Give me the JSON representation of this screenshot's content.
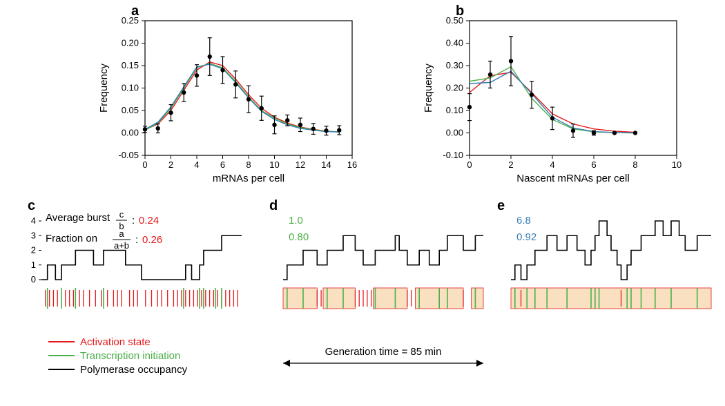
{
  "panel_a": {
    "label": "a",
    "type": "scatter+line",
    "xlabel": "mRNAs per cell",
    "ylabel": "Frequency",
    "xlim": [
      0,
      16
    ],
    "ylim": [
      -0.05,
      0.25
    ],
    "xtick_step": 2,
    "yticks": [
      -0.05,
      0.0,
      0.05,
      0.1,
      0.15,
      0.2,
      0.25
    ],
    "background_color": "#ffffff",
    "marker_color": "#000000",
    "marker_size": 3.2,
    "error_bar_color": "#000000",
    "line_width": 1.4,
    "line_colors": {
      "red": "#e41a1c",
      "green": "#4daf4a",
      "blue": "#377eb8"
    },
    "data_points": [
      {
        "x": 0,
        "y": 0.008,
        "err": 0.007
      },
      {
        "x": 1,
        "y": 0.01,
        "err": 0.01
      },
      {
        "x": 2,
        "y": 0.045,
        "err": 0.018
      },
      {
        "x": 3,
        "y": 0.09,
        "err": 0.02
      },
      {
        "x": 4,
        "y": 0.128,
        "err": 0.024
      },
      {
        "x": 5,
        "y": 0.17,
        "err": 0.042
      },
      {
        "x": 6,
        "y": 0.14,
        "err": 0.03
      },
      {
        "x": 7,
        "y": 0.108,
        "err": 0.03
      },
      {
        "x": 8,
        "y": 0.075,
        "err": 0.03
      },
      {
        "x": 9,
        "y": 0.055,
        "err": 0.027
      },
      {
        "x": 10,
        "y": 0.018,
        "err": 0.02
      },
      {
        "x": 11,
        "y": 0.028,
        "err": 0.012
      },
      {
        "x": 12,
        "y": 0.018,
        "err": 0.015
      },
      {
        "x": 13,
        "y": 0.009,
        "err": 0.012
      },
      {
        "x": 14,
        "y": 0.005,
        "err": 0.01
      },
      {
        "x": 15,
        "y": 0.006,
        "err": 0.01
      }
    ],
    "red_curve": [
      {
        "x": 0,
        "y": 0.007
      },
      {
        "x": 1,
        "y": 0.02
      },
      {
        "x": 2,
        "y": 0.05
      },
      {
        "x": 3,
        "y": 0.095
      },
      {
        "x": 4,
        "y": 0.14
      },
      {
        "x": 5,
        "y": 0.158
      },
      {
        "x": 6,
        "y": 0.15
      },
      {
        "x": 7,
        "y": 0.12
      },
      {
        "x": 8,
        "y": 0.085
      },
      {
        "x": 9,
        "y": 0.055
      },
      {
        "x": 10,
        "y": 0.035
      },
      {
        "x": 11,
        "y": 0.022
      },
      {
        "x": 12,
        "y": 0.013
      },
      {
        "x": 13,
        "y": 0.008
      },
      {
        "x": 14,
        "y": 0.004
      },
      {
        "x": 15,
        "y": 0.002
      }
    ],
    "green_curve": [
      {
        "x": 0,
        "y": 0.006
      },
      {
        "x": 1,
        "y": 0.022
      },
      {
        "x": 2,
        "y": 0.055
      },
      {
        "x": 3,
        "y": 0.1
      },
      {
        "x": 4,
        "y": 0.145
      },
      {
        "x": 5,
        "y": 0.155
      },
      {
        "x": 6,
        "y": 0.145
      },
      {
        "x": 7,
        "y": 0.115
      },
      {
        "x": 8,
        "y": 0.08
      },
      {
        "x": 9,
        "y": 0.05
      },
      {
        "x": 10,
        "y": 0.033
      },
      {
        "x": 11,
        "y": 0.02
      },
      {
        "x": 12,
        "y": 0.012
      },
      {
        "x": 13,
        "y": 0.007
      },
      {
        "x": 14,
        "y": 0.004
      },
      {
        "x": 15,
        "y": 0.002
      }
    ],
    "blue_curve": [
      {
        "x": 0,
        "y": 0.008
      },
      {
        "x": 1,
        "y": 0.024
      },
      {
        "x": 2,
        "y": 0.058
      },
      {
        "x": 3,
        "y": 0.103
      },
      {
        "x": 4,
        "y": 0.147
      },
      {
        "x": 5,
        "y": 0.153
      },
      {
        "x": 6,
        "y": 0.143
      },
      {
        "x": 7,
        "y": 0.112
      },
      {
        "x": 8,
        "y": 0.078
      },
      {
        "x": 9,
        "y": 0.048
      },
      {
        "x": 10,
        "y": 0.03
      },
      {
        "x": 11,
        "y": 0.018
      },
      {
        "x": 12,
        "y": 0.01
      },
      {
        "x": 13,
        "y": 0.006
      },
      {
        "x": 14,
        "y": 0.003
      },
      {
        "x": 15,
        "y": 0.002
      }
    ]
  },
  "panel_b": {
    "label": "b",
    "type": "scatter+line",
    "xlabel": "Nascent mRNAs per cell",
    "ylabel": "Frequency",
    "xlim": [
      0,
      10
    ],
    "ylim": [
      -0.1,
      0.5
    ],
    "xtick_step": 2,
    "yticks": [
      -0.1,
      0.0,
      0.1,
      0.2,
      0.3,
      0.4,
      0.5
    ],
    "background_color": "#ffffff",
    "marker_color": "#000000",
    "marker_size": 3.2,
    "error_bar_color": "#000000",
    "line_width": 1.4,
    "line_colors": {
      "red": "#e41a1c",
      "green": "#4daf4a",
      "blue": "#377eb8"
    },
    "data_points": [
      {
        "x": 0,
        "y": 0.115,
        "err": 0.06
      },
      {
        "x": 1,
        "y": 0.26,
        "err": 0.06
      },
      {
        "x": 2,
        "y": 0.32,
        "err": 0.11
      },
      {
        "x": 3,
        "y": 0.17,
        "err": 0.06
      },
      {
        "x": 4,
        "y": 0.065,
        "err": 0.05
      },
      {
        "x": 5,
        "y": 0.01,
        "err": 0.03
      },
      {
        "x": 6,
        "y": 0.0,
        "err": 0.01
      },
      {
        "x": 7,
        "y": 0.0,
        "err": 0.0
      },
      {
        "x": 8,
        "y": 0.0,
        "err": 0.0
      }
    ],
    "red_curve": [
      {
        "x": 0,
        "y": 0.18
      },
      {
        "x": 1,
        "y": 0.255
      },
      {
        "x": 2,
        "y": 0.27
      },
      {
        "x": 3,
        "y": 0.18
      },
      {
        "x": 4,
        "y": 0.085
      },
      {
        "x": 5,
        "y": 0.04
      },
      {
        "x": 6,
        "y": 0.018
      },
      {
        "x": 7,
        "y": 0.008
      },
      {
        "x": 8,
        "y": 0.003
      }
    ],
    "green_curve": [
      {
        "x": 0,
        "y": 0.23
      },
      {
        "x": 1,
        "y": 0.245
      },
      {
        "x": 2,
        "y": 0.295
      },
      {
        "x": 3,
        "y": 0.155
      },
      {
        "x": 4,
        "y": 0.06
      },
      {
        "x": 5,
        "y": 0.018
      },
      {
        "x": 6,
        "y": 0.005
      },
      {
        "x": 7,
        "y": 0.001
      },
      {
        "x": 8,
        "y": 0.0
      }
    ],
    "blue_curve": [
      {
        "x": 0,
        "y": 0.22
      },
      {
        "x": 1,
        "y": 0.225
      },
      {
        "x": 2,
        "y": 0.275
      },
      {
        "x": 3,
        "y": 0.175
      },
      {
        "x": 4,
        "y": 0.07
      },
      {
        "x": 5,
        "y": 0.022
      },
      {
        "x": 6,
        "y": 0.006
      },
      {
        "x": 7,
        "y": 0.002
      },
      {
        "x": 8,
        "y": 0.0
      }
    ]
  },
  "panel_c": {
    "label": "c",
    "type": "trace",
    "yticks": [
      0,
      1,
      2,
      3,
      4
    ],
    "burst_label": "Average burst",
    "burst_frac_a": "c",
    "burst_frac_b": "b",
    "burst_value": "0.24",
    "fraction_label": "Fraction on",
    "fraction_frac_a": "a",
    "fraction_frac_b": "a+b",
    "fraction_value": "0.26",
    "value_color": "#e41a1c",
    "trace": [
      [
        0,
        0
      ],
      [
        0.03,
        0
      ],
      [
        0.03,
        1
      ],
      [
        0.07,
        1
      ],
      [
        0.07,
        0
      ],
      [
        0.1,
        0
      ],
      [
        0.1,
        1
      ],
      [
        0.17,
        1
      ],
      [
        0.17,
        2
      ],
      [
        0.26,
        2
      ],
      [
        0.26,
        1
      ],
      [
        0.31,
        1
      ],
      [
        0.31,
        2
      ],
      [
        0.42,
        2
      ],
      [
        0.42,
        1
      ],
      [
        0.5,
        1
      ],
      [
        0.5,
        0
      ],
      [
        0.72,
        0
      ],
      [
        0.72,
        1
      ],
      [
        0.75,
        1
      ],
      [
        0.75,
        0
      ],
      [
        0.79,
        0
      ],
      [
        0.79,
        1
      ],
      [
        0.81,
        1
      ],
      [
        0.81,
        2
      ],
      [
        0.9,
        2
      ],
      [
        0.9,
        3
      ],
      [
        1.0,
        3
      ]
    ],
    "activation_ticks": [
      0.02,
      0.04,
      0.06,
      0.08,
      0.12,
      0.14,
      0.16,
      0.19,
      0.21,
      0.24,
      0.27,
      0.3,
      0.33,
      0.36,
      0.38,
      0.4,
      0.44,
      0.46,
      0.48,
      0.52,
      0.55,
      0.58,
      0.6,
      0.63,
      0.66,
      0.68,
      0.7,
      0.72,
      0.74,
      0.76,
      0.78,
      0.8,
      0.82,
      0.84,
      0.86,
      0.88,
      0.9,
      0.92,
      0.94,
      0.96,
      0.98
    ],
    "initiation_ticks": [
      0.03,
      0.1,
      0.17,
      0.31,
      0.71,
      0.79,
      0.81,
      0.87,
      0.9
    ],
    "on_intervals": [],
    "trace_color": "#000000",
    "activation_color": "#e41a1c",
    "initiation_color": "#4daf4a",
    "on_fill": "#f8e0c0"
  },
  "panel_d": {
    "label": "d",
    "type": "trace",
    "burst_value": "1.0",
    "fraction_value": "0.80",
    "value_color": "#4daf4a",
    "trace": [
      [
        0,
        0
      ],
      [
        0.02,
        0
      ],
      [
        0.02,
        1
      ],
      [
        0.1,
        1
      ],
      [
        0.1,
        2
      ],
      [
        0.17,
        2
      ],
      [
        0.17,
        1
      ],
      [
        0.22,
        1
      ],
      [
        0.22,
        2
      ],
      [
        0.3,
        2
      ],
      [
        0.3,
        3
      ],
      [
        0.36,
        3
      ],
      [
        0.36,
        2
      ],
      [
        0.4,
        2
      ],
      [
        0.4,
        1
      ],
      [
        0.46,
        1
      ],
      [
        0.46,
        2
      ],
      [
        0.56,
        2
      ],
      [
        0.56,
        3
      ],
      [
        0.58,
        3
      ],
      [
        0.58,
        2
      ],
      [
        0.62,
        2
      ],
      [
        0.62,
        1
      ],
      [
        0.68,
        1
      ],
      [
        0.68,
        2
      ],
      [
        0.73,
        2
      ],
      [
        0.73,
        1
      ],
      [
        0.78,
        1
      ],
      [
        0.78,
        2
      ],
      [
        0.82,
        2
      ],
      [
        0.82,
        3
      ],
      [
        0.9,
        3
      ],
      [
        0.9,
        2
      ],
      [
        0.96,
        2
      ],
      [
        0.96,
        3
      ],
      [
        1.0,
        3
      ]
    ],
    "activation_ticks": [
      0.17,
      0.19,
      0.36,
      0.38,
      0.4,
      0.42,
      0.44,
      0.62,
      0.64,
      0.9
    ],
    "initiation_ticks": [
      0.02,
      0.1,
      0.22,
      0.3,
      0.46,
      0.56,
      0.68,
      0.78,
      0.82,
      0.96
    ],
    "on_intervals": [
      [
        0.0,
        0.17
      ],
      [
        0.2,
        0.36
      ],
      [
        0.45,
        0.62
      ],
      [
        0.66,
        0.9
      ],
      [
        0.94,
        1.0
      ]
    ],
    "trace_color": "#000000",
    "activation_color": "#e41a1c",
    "initiation_color": "#4daf4a",
    "on_fill": "#f8e0c0"
  },
  "panel_e": {
    "label": "e",
    "type": "trace",
    "burst_value": "6.8",
    "fraction_value": "0.92",
    "value_color": "#377eb8",
    "trace": [
      [
        0,
        0
      ],
      [
        0.02,
        0
      ],
      [
        0.02,
        1
      ],
      [
        0.05,
        1
      ],
      [
        0.05,
        0
      ],
      [
        0.08,
        0
      ],
      [
        0.08,
        1
      ],
      [
        0.12,
        1
      ],
      [
        0.12,
        2
      ],
      [
        0.18,
        2
      ],
      [
        0.18,
        3
      ],
      [
        0.23,
        3
      ],
      [
        0.23,
        2
      ],
      [
        0.28,
        2
      ],
      [
        0.28,
        3
      ],
      [
        0.33,
        3
      ],
      [
        0.33,
        2
      ],
      [
        0.37,
        2
      ],
      [
        0.37,
        1
      ],
      [
        0.4,
        1
      ],
      [
        0.4,
        2
      ],
      [
        0.42,
        2
      ],
      [
        0.42,
        3
      ],
      [
        0.44,
        3
      ],
      [
        0.44,
        4
      ],
      [
        0.48,
        4
      ],
      [
        0.48,
        3
      ],
      [
        0.5,
        3
      ],
      [
        0.5,
        2
      ],
      [
        0.53,
        2
      ],
      [
        0.53,
        1
      ],
      [
        0.55,
        1
      ],
      [
        0.55,
        0
      ],
      [
        0.58,
        0
      ],
      [
        0.58,
        1
      ],
      [
        0.6,
        1
      ],
      [
        0.6,
        2
      ],
      [
        0.65,
        2
      ],
      [
        0.65,
        3
      ],
      [
        0.72,
        3
      ],
      [
        0.72,
        4
      ],
      [
        0.76,
        4
      ],
      [
        0.76,
        3
      ],
      [
        0.8,
        3
      ],
      [
        0.8,
        4
      ],
      [
        0.84,
        4
      ],
      [
        0.84,
        3
      ],
      [
        0.87,
        3
      ],
      [
        0.87,
        2
      ],
      [
        0.93,
        2
      ],
      [
        0.93,
        3
      ],
      [
        1.0,
        3
      ]
    ],
    "activation_ticks": [
      0.05,
      0.55
    ],
    "initiation_ticks": [
      0.02,
      0.08,
      0.12,
      0.18,
      0.28,
      0.4,
      0.42,
      0.44,
      0.58,
      0.6,
      0.65,
      0.72,
      0.8,
      0.93
    ],
    "on_intervals": [
      [
        0.0,
        1.0
      ]
    ],
    "trace_color": "#000000",
    "activation_color": "#e41a1c",
    "initiation_color": "#4daf4a",
    "on_fill": "#f8e0c0"
  },
  "legend": {
    "items": [
      {
        "label": "Activation state",
        "color": "#e41a1c"
      },
      {
        "label": "Transcription initiation",
        "color": "#4daf4a"
      },
      {
        "label": "Polymerase occupancy",
        "color": "#000000"
      }
    ]
  },
  "generation_time_label": "Generation time = 85 min"
}
